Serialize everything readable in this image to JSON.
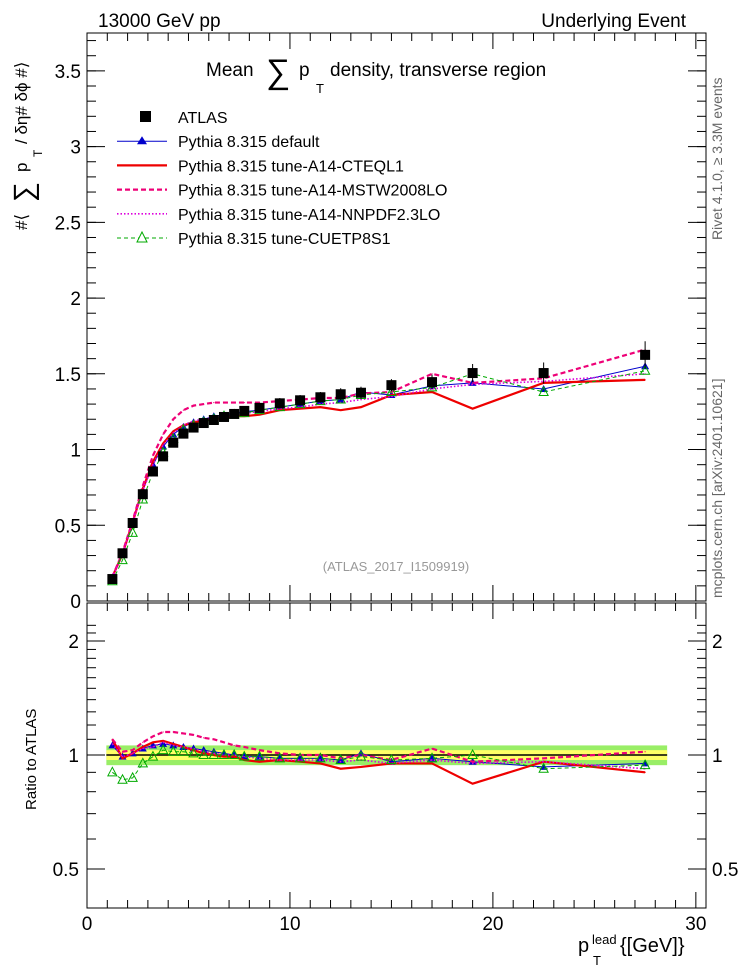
{
  "header": {
    "left": "13000 GeV pp",
    "right": "Underlying Event"
  },
  "side_labels": {
    "rivet": "Rivet 4.1.0, ≥ 3.3M events",
    "mcplots": "mcplots.cern.ch [arXiv:2401.10621]"
  },
  "chart_data": [
    {
      "type": "scatter",
      "panel": "main",
      "title_prefix": "Mean",
      "title_sum": "∑",
      "title_p": "p",
      "title_T": "T",
      "title_suffix": "density, transverse region",
      "ylabel_open": "#⟨",
      "ylabel_sum": "∑",
      "ylabel_p": "p",
      "ylabel_T": "T",
      "ylabel_rest": "/ δη# δϕ #⟩",
      "watermark": "(ATLAS_2017_I1509919)",
      "xlim": [
        0,
        30.5
      ],
      "ylim": [
        0,
        3.75
      ],
      "yticks": [
        "0",
        "0.5",
        "1",
        "1.5",
        "2",
        "2.5",
        "3",
        "3.5"
      ],
      "x": [
        1.25,
        1.75,
        2.25,
        2.75,
        3.25,
        3.75,
        4.25,
        4.75,
        5.25,
        5.75,
        6.25,
        6.75,
        7.25,
        7.75,
        8.5,
        9.5,
        10.5,
        11.5,
        12.5,
        13.5,
        15.0,
        17.0,
        19.0,
        22.5,
        27.5
      ],
      "series": [
        {
          "name": "ATLAS",
          "color": "#000000",
          "style": "data",
          "values": [
            0.145,
            0.315,
            0.515,
            0.705,
            0.855,
            0.955,
            1.045,
            1.105,
            1.145,
            1.175,
            1.195,
            1.215,
            1.235,
            1.255,
            1.275,
            1.305,
            1.325,
            1.345,
            1.365,
            1.375,
            1.425,
            1.445,
            1.505,
            1.505,
            1.625
          ],
          "yerr": [
            0.01,
            0.01,
            0.01,
            0.01,
            0.01,
            0.01,
            0.01,
            0.01,
            0.01,
            0.01,
            0.01,
            0.01,
            0.01,
            0.01,
            0.01,
            0.015,
            0.015,
            0.015,
            0.02,
            0.02,
            0.02,
            0.03,
            0.04,
            0.05,
            0.07
          ]
        },
        {
          "name": "Pythia 8.315 default",
          "color": "#0000cc",
          "style": "solid-thin",
          "marker": "triangle-filled",
          "values": [
            0.155,
            0.31,
            0.52,
            0.73,
            0.9,
            1.02,
            1.1,
            1.15,
            1.18,
            1.2,
            1.22,
            1.23,
            1.24,
            1.25,
            1.26,
            1.28,
            1.3,
            1.32,
            1.33,
            1.38,
            1.36,
            1.42,
            1.44,
            1.4,
            1.55
          ]
        },
        {
          "name": "Pythia 8.315 tune-A14-CTEQL1",
          "color": "#ee0000",
          "style": "solid-thick",
          "values": [
            0.16,
            0.31,
            0.52,
            0.74,
            0.92,
            1.04,
            1.12,
            1.16,
            1.18,
            1.19,
            1.2,
            1.21,
            1.22,
            1.22,
            1.23,
            1.26,
            1.27,
            1.28,
            1.26,
            1.28,
            1.36,
            1.38,
            1.27,
            1.44,
            1.46
          ]
        },
        {
          "name": "Pythia 8.315 tune-A14-MSTW2008LO",
          "color": "#ee0077",
          "style": "dashed",
          "values": [
            0.16,
            0.32,
            0.53,
            0.76,
            0.96,
            1.1,
            1.2,
            1.26,
            1.29,
            1.3,
            1.31,
            1.31,
            1.31,
            1.31,
            1.31,
            1.32,
            1.33,
            1.34,
            1.34,
            1.37,
            1.38,
            1.5,
            1.44,
            1.47,
            1.66
          ]
        },
        {
          "name": "Pythia 8.315 tune-A14-NNPDF2.3LO",
          "color": "#dd00dd",
          "style": "dotted",
          "values": [
            0.155,
            0.31,
            0.52,
            0.73,
            0.9,
            1.03,
            1.11,
            1.16,
            1.19,
            1.2,
            1.21,
            1.22,
            1.23,
            1.24,
            1.25,
            1.27,
            1.28,
            1.3,
            1.31,
            1.33,
            1.35,
            1.4,
            1.43,
            1.45,
            1.5
          ]
        },
        {
          "name": "Pythia 8.315 tune-CUETP8S1",
          "color": "#00aa00",
          "style": "dashed-thin",
          "marker": "triangle-open",
          "values": [
            0.13,
            0.27,
            0.45,
            0.67,
            0.85,
            0.98,
            1.07,
            1.13,
            1.16,
            1.18,
            1.2,
            1.22,
            1.23,
            1.24,
            1.26,
            1.28,
            1.3,
            1.32,
            1.33,
            1.36,
            1.38,
            1.41,
            1.5,
            1.38,
            1.52
          ]
        }
      ]
    },
    {
      "type": "line",
      "panel": "ratio",
      "ylabel": "Ratio to ATLAS",
      "xlabel_p": "p",
      "xlabel_T": "T",
      "xlabel_lead": "lead",
      "xlabel_rest": "{[GeV]}",
      "xlim": [
        0,
        30.5
      ],
      "ylim": [
        0.33,
        2.3
      ],
      "yticks": [
        "0.5",
        "1",
        "2"
      ],
      "xticks": [
        "0",
        "10",
        "20",
        "30"
      ],
      "band_inner": 0.03,
      "band_outer": 0.06,
      "band_colors": [
        "#ffff66",
        "#99ee66"
      ],
      "series": [
        {
          "name": "Pythia 8.315 default",
          "values": [
            1.06,
            0.99,
            1.01,
            1.04,
            1.06,
            1.07,
            1.06,
            1.05,
            1.04,
            1.03,
            1.02,
            1.01,
            1.0,
            0.99,
            0.99,
            0.98,
            0.98,
            0.98,
            0.97,
            1.01,
            0.96,
            0.98,
            0.96,
            0.93,
            0.95
          ]
        },
        {
          "name": "Pythia 8.315 tune-A14-CTEQL1",
          "values": [
            1.1,
            0.98,
            1.01,
            1.05,
            1.08,
            1.09,
            1.07,
            1.05,
            1.03,
            1.01,
            1.0,
            0.99,
            0.99,
            0.97,
            0.96,
            0.97,
            0.96,
            0.95,
            0.92,
            0.93,
            0.95,
            0.95,
            0.84,
            0.96,
            0.9
          ]
        },
        {
          "name": "Pythia 8.315 tune-A14-MSTW2008LO",
          "values": [
            1.1,
            1.02,
            1.03,
            1.08,
            1.12,
            1.15,
            1.15,
            1.14,
            1.13,
            1.11,
            1.1,
            1.08,
            1.06,
            1.05,
            1.03,
            1.01,
            1.0,
            1.0,
            0.98,
            1.0,
            0.97,
            1.04,
            0.96,
            0.98,
            1.02
          ]
        },
        {
          "name": "Pythia 8.315 tune-A14-NNPDF2.3LO",
          "values": [
            1.07,
            0.99,
            1.01,
            1.04,
            1.05,
            1.08,
            1.06,
            1.05,
            1.04,
            1.02,
            1.01,
            1.0,
            1.0,
            0.99,
            0.98,
            0.97,
            0.97,
            0.97,
            0.96,
            0.97,
            0.95,
            0.97,
            0.95,
            0.96,
            0.92
          ]
        },
        {
          "name": "Pythia 8.315 tune-CUETP8S1",
          "values": [
            0.9,
            0.86,
            0.87,
            0.95,
            0.99,
            1.03,
            1.02,
            1.02,
            1.01,
            1.0,
            1.0,
            1.0,
            1.0,
            0.99,
            0.99,
            0.98,
            0.98,
            0.98,
            0.97,
            0.99,
            0.97,
            0.98,
            1.0,
            0.92,
            0.94
          ]
        }
      ]
    }
  ]
}
